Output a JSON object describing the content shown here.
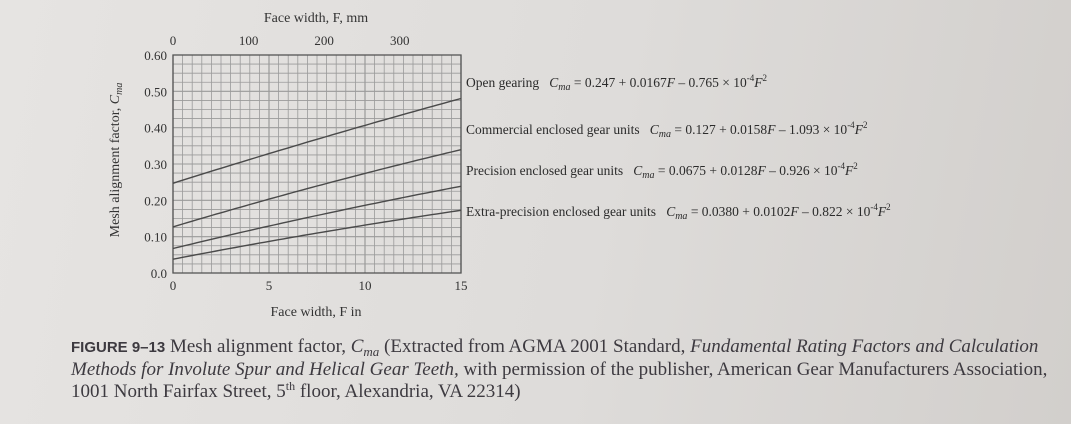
{
  "chart_data": {
    "type": "line",
    "x_top_label": "Face width, F, mm",
    "x_top_ticks": [
      "0",
      "100",
      "200",
      "300"
    ],
    "x_top_values_mm": [
      0,
      100,
      200,
      300
    ],
    "xlabel": "Face width, F in",
    "x_ticks": [
      "0",
      "5",
      "10",
      "15"
    ],
    "x_tick_values": [
      0,
      5,
      10,
      15
    ],
    "xlim": [
      0,
      15
    ],
    "ylabel_main": "Mesh alignment factor,",
    "ylabel_symbol": "C",
    "ylabel_sub": "ma",
    "y_ticks": [
      "0.0",
      "0.10",
      "0.20",
      "0.30",
      "0.40",
      "0.50",
      "0.60"
    ],
    "y_tick_values": [
      0.0,
      0.1,
      0.2,
      0.3,
      0.4,
      0.5,
      0.6
    ],
    "ylim": [
      0,
      0.6
    ],
    "grid": true,
    "series": [
      {
        "name": "Open gearing",
        "a": 0.247,
        "b": 0.0167,
        "c": -7.65e-05,
        "x": [
          0,
          5,
          10,
          15
        ],
        "values": [
          0.247,
          0.329,
          0.406,
          0.48
        ],
        "eq_prefix": "= 0.247 + 0.0167",
        "eq_mid": " – 0.765 × 10"
      },
      {
        "name": "Commercial enclosed gear units",
        "a": 0.127,
        "b": 0.0158,
        "c": -0.0001093,
        "x": [
          0,
          5,
          10,
          15
        ],
        "values": [
          0.127,
          0.204,
          0.274,
          0.339
        ],
        "eq_prefix": "= 0.127 + 0.0158",
        "eq_mid": " – 1.093 × 10"
      },
      {
        "name": "Precision enclosed gear units",
        "a": 0.0675,
        "b": 0.0128,
        "c": -9.26e-05,
        "x": [
          0,
          5,
          10,
          15
        ],
        "values": [
          0.068,
          0.129,
          0.186,
          0.24
        ],
        "eq_prefix": "= 0.0675 + 0.0128",
        "eq_mid": " – 0.926 × 10"
      },
      {
        "name": "Extra-precision enclosed gear units",
        "a": 0.038,
        "b": 0.0102,
        "c": -8.22e-05,
        "x": [
          0,
          5,
          10,
          15
        ],
        "values": [
          0.038,
          0.087,
          0.132,
          0.172
        ],
        "eq_prefix": "= 0.0380 + 0.0102",
        "eq_mid": " – 0.822 × 10"
      }
    ],
    "eq_symbol": "C",
    "eq_sub": "ma",
    "eq_var": "F",
    "eq_exp": "-4",
    "eq_pow": "2"
  },
  "caption": {
    "figure_number": "FIGURE 9–13",
    "text1": " Mesh alignment factor, ",
    "sym": "C",
    "sym_sub": "ma",
    "text2": " (Extracted from AGMA 2001 Standard, ",
    "italic1": "Fundamental Rating Factors and Calculation Methods for Involute Spur and Helical Gear Teeth,",
    "text3": " with permission of the publisher, American Gear Manufacturers Association, 1001 North Fairfax Street, 5",
    "sup": "th",
    "text4": " floor, Alexandria, VA 22314)"
  }
}
